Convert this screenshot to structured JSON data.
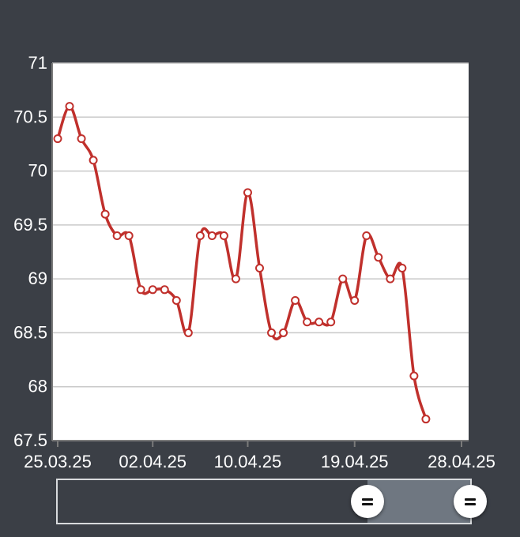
{
  "chart_data": {
    "type": "line",
    "title": "",
    "xlabel": "",
    "ylabel": "",
    "ylim": [
      67.5,
      71
    ],
    "yticks": [
      "71",
      "70.5",
      "70",
      "69.5",
      "69",
      "68.5",
      "68",
      "67.5"
    ],
    "xticks": [
      "25.03.25",
      "02.04.25",
      "10.04.25",
      "19.04.25",
      "28.04.25"
    ],
    "xtick_dates": [
      "2025-03-25",
      "2025-04-02",
      "2025-04-10",
      "2025-04-19",
      "2025-04-28"
    ],
    "grid": true,
    "line_color": "#c0302c",
    "series": [
      {
        "x": [
          "2025-03-25",
          "2025-03-26",
          "2025-03-27",
          "2025-03-28",
          "2025-03-29",
          "2025-03-30",
          "2025-03-31",
          "2025-04-01",
          "2025-04-02",
          "2025-04-03",
          "2025-04-04",
          "2025-04-05",
          "2025-04-06",
          "2025-04-07",
          "2025-04-08",
          "2025-04-09",
          "2025-04-10",
          "2025-04-11",
          "2025-04-12",
          "2025-04-13",
          "2025-04-14",
          "2025-04-15",
          "2025-04-16",
          "2025-04-17",
          "2025-04-18",
          "2025-04-19",
          "2025-04-20",
          "2025-04-21",
          "2025-04-22",
          "2025-04-23",
          "2025-04-24",
          "2025-04-25",
          "2025-04-26",
          "2025-04-27",
          "2025-04-28"
        ],
        "values": [
          70.3,
          70.6,
          70.3,
          70.1,
          69.6,
          69.4,
          69.4,
          68.9,
          68.9,
          68.9,
          68.8,
          68.5,
          69.4,
          69.4,
          69.4,
          69.0,
          69.8,
          69.1,
          68.5,
          68.5,
          68.8,
          68.6,
          68.6,
          68.6,
          69.0,
          68.8,
          69.4,
          69.2,
          69.0,
          69.1,
          68.1,
          67.7,
          null,
          null,
          null
        ]
      }
    ]
  },
  "range_slider": {
    "start": 0.75,
    "end": 1.0,
    "left_handle_icon": "grip-icon",
    "right_handle_icon": "grip-icon"
  }
}
